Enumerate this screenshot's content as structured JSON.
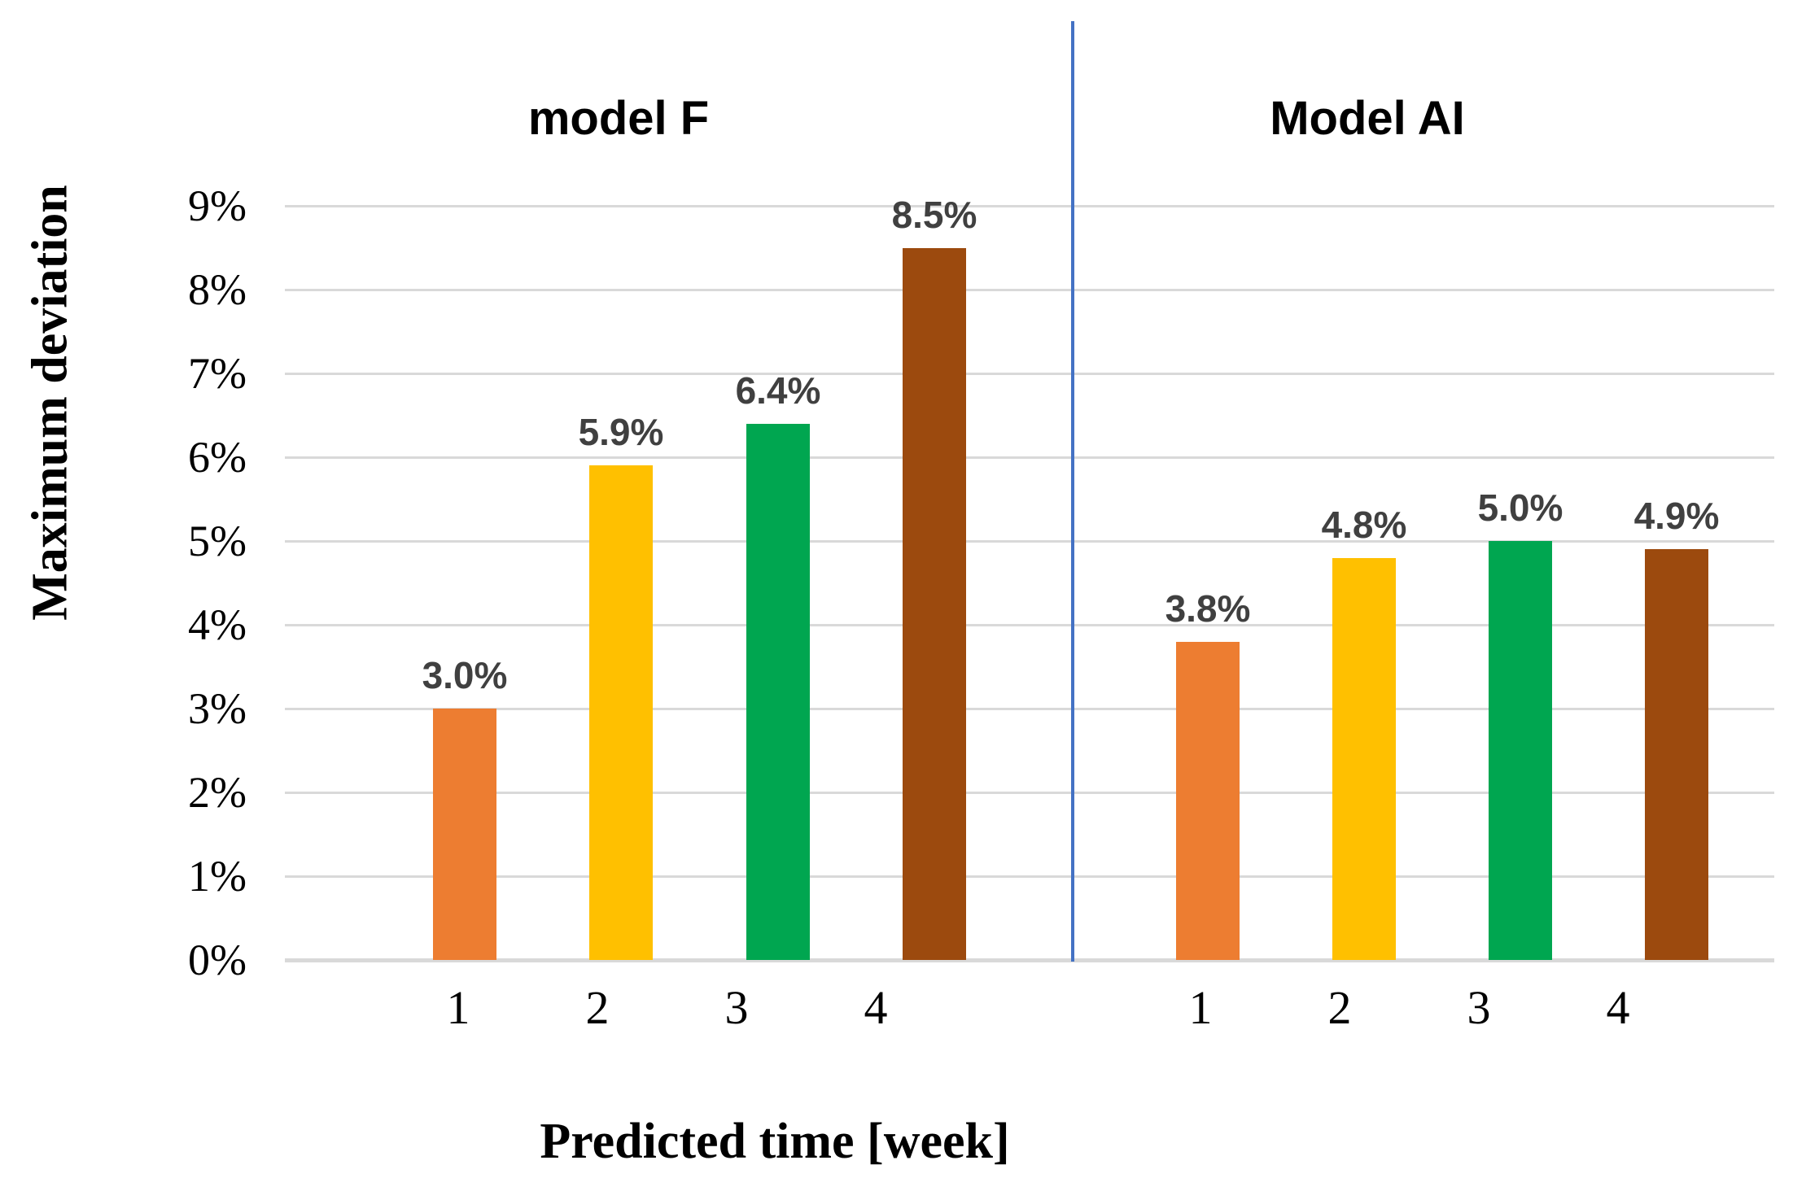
{
  "chart_data": {
    "type": "bar",
    "title_left": "model F",
    "title_right": "Model AI",
    "ylabel": "Maximum deviation",
    "xlabel": "Predicted time [week]",
    "ylim": [
      0,
      9
    ],
    "ytick_step": 1,
    "yticks": [
      "0%",
      "1%",
      "2%",
      "3%",
      "4%",
      "5%",
      "6%",
      "7%",
      "8%",
      "9%"
    ],
    "grid": true,
    "legend_position": "none",
    "groups": [
      {
        "name": "model F",
        "categories": [
          "1",
          "2",
          "3",
          "4"
        ],
        "values": [
          3.0,
          5.9,
          6.4,
          8.5
        ],
        "data_labels": [
          "3.0%",
          "5.9%",
          "6.4%",
          "8.5%"
        ]
      },
      {
        "name": "Model AI",
        "categories": [
          "1",
          "2",
          "3",
          "4"
        ],
        "values": [
          3.8,
          4.8,
          5.0,
          4.9
        ],
        "data_labels": [
          "3.8%",
          "4.8%",
          "5.0%",
          "4.9%"
        ]
      }
    ],
    "colors": {
      "bar_week_1": "#ED7D31",
      "bar_week_2": "#FFC000",
      "bar_week_3": "#00A650",
      "bar_week_4": "#9C4A0E",
      "divider": "#4472C4",
      "gridline": "#D9D9D9",
      "data_label": "#404040",
      "text": "#000000"
    }
  }
}
